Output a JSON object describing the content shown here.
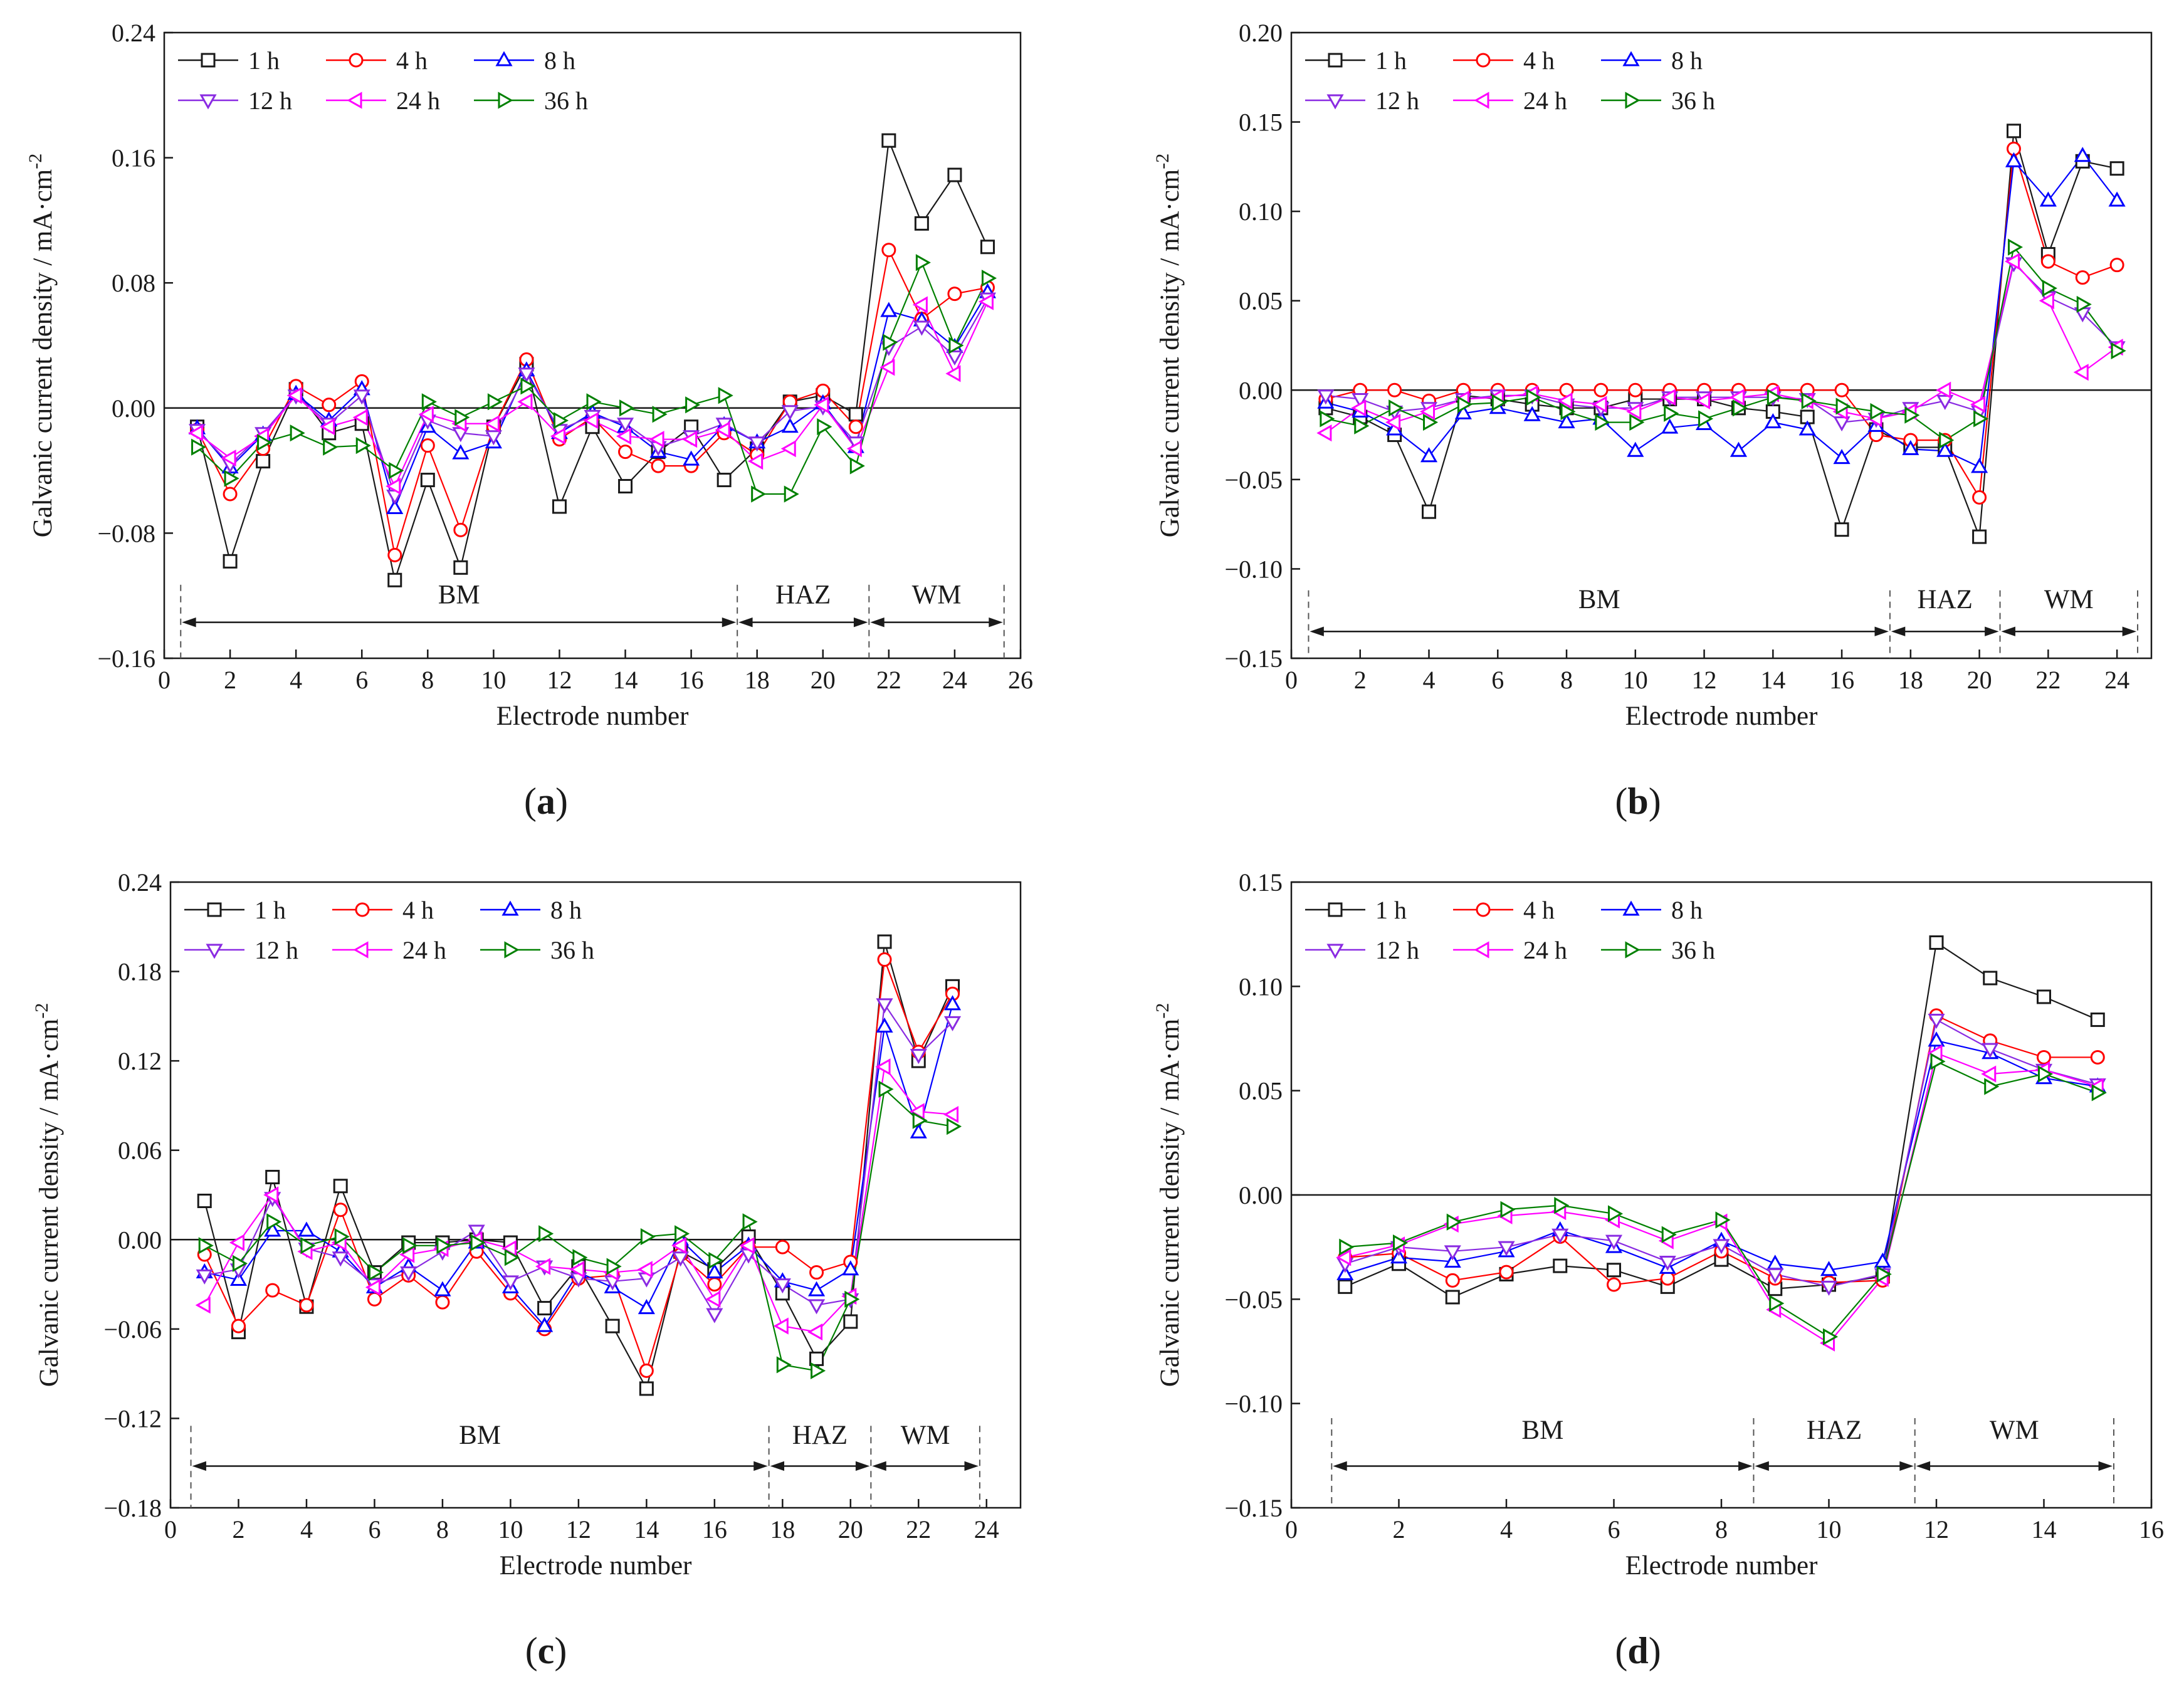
{
  "figure": {
    "captions": [
      "(a)",
      "(b)",
      "(c)",
      "(d)"
    ]
  },
  "styles": {
    "1 h": {
      "color": "#1a1a1a",
      "marker": "square"
    },
    "4 h": {
      "color": "#ff0000",
      "marker": "circle"
    },
    "8 h": {
      "color": "#0000ff",
      "marker": "triangle-up"
    },
    "12 h": {
      "color": "#8a2be2",
      "marker": "triangle-down"
    },
    "24 h": {
      "color": "#ff00ff",
      "marker": "triangle-left"
    },
    "36 h": {
      "color": "#008000",
      "marker": "triangle-right"
    }
  },
  "chart_data": [
    {
      "type": "line",
      "caption": "(a)",
      "xlabel": "Electrode number",
      "ylabel": "Galvanic current density / mA·cm",
      "ylabel_sup": "-2",
      "xlim": [
        0,
        26
      ],
      "ylim": [
        -0.16,
        0.24
      ],
      "xticks": [
        0,
        2,
        4,
        6,
        8,
        10,
        12,
        14,
        16,
        18,
        20,
        22,
        24,
        26
      ],
      "xtick_labels": [
        "0",
        "2",
        "4",
        "6",
        "8",
        "10",
        "12",
        "14",
        "16",
        "18",
        "20",
        "22",
        "24",
        "26"
      ],
      "yticks": [
        -0.16,
        -0.08,
        0.0,
        0.08,
        0.16,
        0.24
      ],
      "ytick_labels": [
        "−0.16",
        "−0.08",
        "0.00",
        "0.08",
        "0.16",
        "0.24"
      ],
      "legend": [
        "1 h",
        "4 h",
        "8 h",
        "12 h",
        "24 h",
        "36 h"
      ],
      "regions": [
        {
          "label": "BM",
          "from": 0.5,
          "to": 17.4
        },
        {
          "label": "HAZ",
          "from": 17.4,
          "to": 21.4
        },
        {
          "label": "WM",
          "from": 21.4,
          "to": 25.5
        }
      ],
      "region_y": -0.137,
      "region_label_y": -0.125,
      "region_top": -0.113,
      "x": [
        1,
        2,
        3,
        4,
        5,
        6,
        7,
        8,
        9,
        10,
        11,
        12,
        13,
        14,
        15,
        16,
        17,
        18,
        19,
        20,
        21,
        22,
        23,
        24,
        25
      ],
      "series": [
        {
          "name": "1 h",
          "values": [
            -0.012,
            -0.098,
            -0.034,
            0.012,
            -0.016,
            -0.01,
            -0.11,
            -0.046,
            -0.102,
            -0.012,
            0.028,
            -0.063,
            -0.012,
            -0.05,
            -0.028,
            -0.012,
            -0.046,
            -0.026,
            0.004,
            0.008,
            -0.004,
            0.171,
            0.118,
            0.149,
            0.103
          ]
        },
        {
          "name": "4 h",
          "values": [
            -0.014,
            -0.055,
            -0.026,
            0.014,
            0.002,
            0.017,
            -0.094,
            -0.024,
            -0.078,
            -0.012,
            0.031,
            -0.02,
            -0.006,
            -0.028,
            -0.037,
            -0.037,
            -0.016,
            -0.03,
            0.004,
            0.011,
            -0.012,
            0.101,
            0.057,
            0.073,
            0.077
          ]
        },
        {
          "name": "8 h",
          "values": [
            -0.013,
            -0.038,
            -0.017,
            0.009,
            -0.008,
            0.012,
            -0.064,
            -0.012,
            -0.029,
            -0.022,
            0.024,
            -0.016,
            -0.003,
            -0.012,
            -0.028,
            -0.033,
            -0.011,
            -0.022,
            -0.012,
            0.003,
            -0.025,
            0.062,
            0.056,
            0.039,
            0.074
          ]
        },
        {
          "name": "12 h",
          "values": [
            -0.014,
            -0.036,
            -0.016,
            0.008,
            -0.01,
            0.008,
            -0.056,
            -0.008,
            -0.016,
            -0.018,
            0.022,
            -0.014,
            -0.005,
            -0.01,
            -0.025,
            -0.018,
            -0.01,
            -0.022,
            -0.002,
            0.001,
            -0.022,
            0.039,
            0.052,
            0.033,
            0.07
          ]
        },
        {
          "name": "24 h",
          "values": [
            -0.016,
            -0.032,
            -0.018,
            0.008,
            -0.012,
            -0.006,
            -0.05,
            -0.004,
            -0.01,
            -0.01,
            0.004,
            -0.018,
            -0.008,
            -0.018,
            -0.02,
            -0.02,
            -0.014,
            -0.034,
            -0.026,
            0.002,
            -0.026,
            0.026,
            0.066,
            0.022,
            0.068
          ]
        },
        {
          "name": "36 h",
          "values": [
            -0.025,
            -0.045,
            -0.022,
            -0.016,
            -0.025,
            -0.024,
            -0.04,
            0.004,
            -0.006,
            0.004,
            0.014,
            -0.008,
            0.004,
            0.0,
            -0.004,
            0.002,
            0.008,
            -0.055,
            -0.055,
            -0.012,
            -0.037,
            0.042,
            0.093,
            0.04,
            0.083
          ]
        }
      ]
    },
    {
      "type": "line",
      "caption": "(b)",
      "xlabel": "Electrode number",
      "ylabel": "Galvanic current density / mA·cm",
      "ylabel_sup": "-2",
      "xlim": [
        0,
        25
      ],
      "ylim": [
        -0.15,
        0.2
      ],
      "xticks": [
        0,
        2,
        4,
        6,
        8,
        10,
        12,
        14,
        16,
        18,
        20,
        22,
        24
      ],
      "xtick_labels": [
        "0",
        "2",
        "4",
        "6",
        "8",
        "10",
        "12",
        "14",
        "16",
        "18",
        "20",
        "22",
        "24"
      ],
      "yticks": [
        -0.15,
        -0.1,
        -0.05,
        0.0,
        0.05,
        0.1,
        0.15,
        0.2
      ],
      "ytick_labels": [
        "−0.15",
        "−0.10",
        "−0.05",
        "0.00",
        "0.05",
        "0.10",
        "0.15",
        "0.20"
      ],
      "legend": [
        "1 h",
        "4 h",
        "8 h",
        "12 h",
        "24 h",
        "36 h"
      ],
      "regions": [
        {
          "label": "BM",
          "from": 0.5,
          "to": 17.4
        },
        {
          "label": "HAZ",
          "from": 17.4,
          "to": 20.6
        },
        {
          "label": "WM",
          "from": 20.6,
          "to": 24.6
        }
      ],
      "region_y": -0.135,
      "region_label_y": -0.122,
      "region_top": -0.112,
      "x": [
        1,
        2,
        3,
        4,
        5,
        6,
        7,
        8,
        9,
        10,
        11,
        12,
        13,
        14,
        15,
        16,
        17,
        18,
        19,
        20,
        21,
        22,
        23,
        24
      ],
      "series": [
        {
          "name": "1 h",
          "values": [
            -0.01,
            -0.015,
            -0.025,
            -0.068,
            -0.003,
            -0.005,
            -0.008,
            -0.01,
            -0.01,
            -0.005,
            -0.005,
            -0.005,
            -0.01,
            -0.012,
            -0.015,
            -0.078,
            -0.022,
            -0.032,
            -0.032,
            -0.082,
            0.145,
            0.076,
            0.128,
            0.124
          ]
        },
        {
          "name": "4 h",
          "values": [
            -0.005,
            0.0,
            0.0,
            -0.006,
            0.0,
            0.0,
            0.0,
            0.0,
            0.0,
            0.0,
            0.0,
            0.0,
            0.0,
            0.0,
            0.0,
            0.0,
            -0.025,
            -0.028,
            -0.028,
            -0.06,
            0.135,
            0.072,
            0.063,
            0.07
          ]
        },
        {
          "name": "8 h",
          "values": [
            -0.007,
            -0.012,
            -0.022,
            -0.037,
            -0.013,
            -0.01,
            -0.014,
            -0.018,
            -0.016,
            -0.034,
            -0.021,
            -0.019,
            -0.034,
            -0.018,
            -0.022,
            -0.038,
            -0.02,
            -0.033,
            -0.034,
            -0.043,
            0.128,
            0.106,
            0.131,
            0.106
          ]
        },
        {
          "name": "12 h",
          "values": [
            -0.003,
            -0.005,
            -0.012,
            -0.01,
            -0.005,
            -0.003,
            -0.003,
            -0.008,
            -0.01,
            -0.01,
            -0.004,
            -0.004,
            -0.004,
            -0.004,
            -0.005,
            -0.018,
            -0.016,
            -0.01,
            -0.006,
            -0.012,
            0.071,
            0.052,
            0.043,
            0.024
          ]
        },
        {
          "name": "24 h",
          "values": [
            -0.024,
            -0.01,
            -0.018,
            -0.012,
            -0.005,
            -0.004,
            -0.002,
            -0.006,
            -0.008,
            -0.012,
            -0.004,
            -0.006,
            -0.004,
            -0.002,
            -0.006,
            -0.012,
            -0.016,
            -0.012,
            0.0,
            -0.008,
            0.072,
            0.05,
            0.01,
            0.024
          ]
        },
        {
          "name": "36 h",
          "values": [
            -0.016,
            -0.02,
            -0.01,
            -0.018,
            -0.008,
            -0.007,
            -0.004,
            -0.012,
            -0.018,
            -0.018,
            -0.013,
            -0.016,
            -0.01,
            -0.004,
            -0.006,
            -0.009,
            -0.012,
            -0.014,
            -0.028,
            -0.016,
            0.08,
            0.057,
            0.048,
            0.022
          ]
        }
      ]
    },
    {
      "type": "line",
      "caption": "(c)",
      "xlabel": "Electrode number",
      "ylabel": "Galvanic current density / mA·cm",
      "ylabel_sup": "-2",
      "xlim": [
        0,
        25
      ],
      "ylim": [
        -0.18,
        0.24
      ],
      "xticks": [
        0,
        2,
        4,
        6,
        8,
        10,
        12,
        14,
        16,
        18,
        20,
        22,
        24
      ],
      "xtick_labels": [
        "0",
        "2",
        "4",
        "6",
        "8",
        "10",
        "12",
        "14",
        "16",
        "18",
        "20",
        "22",
        "24"
      ],
      "yticks": [
        -0.18,
        -0.12,
        -0.06,
        0.0,
        0.06,
        0.12,
        0.18,
        0.24
      ],
      "ytick_labels": [
        "−0.18",
        "−0.12",
        "−0.06",
        "0.00",
        "0.06",
        "0.12",
        "0.18",
        "0.24"
      ],
      "legend": [
        "1 h",
        "4 h",
        "8 h",
        "12 h",
        "24 h",
        "36 h"
      ],
      "regions": [
        {
          "label": "BM",
          "from": 0.6,
          "to": 17.6
        },
        {
          "label": "HAZ",
          "from": 17.6,
          "to": 20.6
        },
        {
          "label": "WM",
          "from": 20.6,
          "to": 23.8
        }
      ],
      "region_y": -0.152,
      "region_label_y": -0.137,
      "region_top": -0.125,
      "x": [
        1,
        2,
        3,
        4,
        5,
        6,
        7,
        8,
        9,
        10,
        11,
        12,
        13,
        14,
        15,
        16,
        17,
        18,
        19,
        20,
        21,
        22,
        23
      ],
      "series": [
        {
          "name": "1 h",
          "values": [
            0.026,
            -0.062,
            0.042,
            -0.045,
            0.036,
            -0.022,
            -0.002,
            -0.002,
            0.0,
            -0.002,
            -0.046,
            -0.018,
            -0.058,
            -0.1,
            -0.008,
            -0.02,
            0.002,
            -0.036,
            -0.08,
            -0.055,
            0.2,
            0.12,
            0.17
          ]
        },
        {
          "name": "4 h",
          "values": [
            -0.01,
            -0.058,
            -0.034,
            -0.044,
            0.02,
            -0.04,
            -0.024,
            -0.042,
            -0.008,
            -0.036,
            -0.06,
            -0.026,
            -0.024,
            -0.088,
            -0.01,
            -0.03,
            -0.005,
            -0.005,
            -0.022,
            -0.015,
            0.188,
            0.126,
            0.165
          ]
        },
        {
          "name": "8 h",
          "values": [
            -0.022,
            -0.027,
            0.006,
            0.006,
            -0.008,
            -0.032,
            -0.018,
            -0.034,
            -0.002,
            -0.032,
            -0.058,
            -0.022,
            -0.032,
            -0.046,
            0.0,
            -0.022,
            -0.004,
            -0.028,
            -0.034,
            -0.02,
            0.143,
            0.072,
            0.158
          ]
        },
        {
          "name": "12 h",
          "values": [
            -0.024,
            -0.02,
            0.028,
            -0.006,
            -0.012,
            -0.03,
            -0.022,
            -0.008,
            0.006,
            -0.028,
            -0.018,
            -0.026,
            -0.028,
            -0.026,
            -0.012,
            -0.05,
            -0.01,
            -0.03,
            -0.044,
            -0.04,
            0.158,
            0.124,
            0.146
          ]
        },
        {
          "name": "24 h",
          "values": [
            -0.044,
            -0.002,
            0.03,
            -0.008,
            -0.002,
            -0.032,
            -0.01,
            -0.006,
            0.0,
            -0.006,
            -0.018,
            -0.02,
            -0.022,
            -0.02,
            -0.004,
            -0.04,
            -0.004,
            -0.058,
            -0.062,
            -0.038,
            0.116,
            0.086,
            0.084
          ]
        },
        {
          "name": "36 h",
          "values": [
            -0.004,
            -0.016,
            0.012,
            -0.004,
            0.002,
            -0.022,
            -0.004,
            -0.004,
            -0.002,
            -0.012,
            0.004,
            -0.012,
            -0.018,
            0.002,
            0.004,
            -0.014,
            0.012,
            -0.084,
            -0.088,
            -0.04,
            0.101,
            0.08,
            0.076
          ]
        }
      ]
    },
    {
      "type": "line",
      "caption": "(d)",
      "xlabel": "Electrode number",
      "ylabel": "Galvanic current density / mA·cm",
      "ylabel_sup": "-2",
      "xlim": [
        0,
        16
      ],
      "ylim": [
        -0.15,
        0.15
      ],
      "xticks": [
        0,
        2,
        4,
        6,
        8,
        10,
        12,
        14,
        16
      ],
      "xtick_labels": [
        "0",
        "2",
        "4",
        "6",
        "8",
        "10",
        "12",
        "14",
        "16"
      ],
      "yticks": [
        -0.15,
        -0.1,
        -0.05,
        0.0,
        0.05,
        0.1,
        0.15
      ],
      "ytick_labels": [
        "−0.15",
        "−0.10",
        "−0.05",
        "0.00",
        "0.05",
        "0.10",
        "0.15"
      ],
      "legend": [
        "1 h",
        "4 h",
        "8 h",
        "12 h",
        "24 h",
        "36 h"
      ],
      "regions": [
        {
          "label": "BM",
          "from": 0.75,
          "to": 8.6
        },
        {
          "label": "HAZ",
          "from": 8.6,
          "to": 11.6
        },
        {
          "label": "WM",
          "from": 11.6,
          "to": 15.3
        }
      ],
      "region_y": -0.13,
      "region_label_y": -0.117,
      "region_top": -0.107,
      "x": [
        1,
        2,
        3,
        4,
        5,
        6,
        7,
        8,
        9,
        10,
        11,
        12,
        13,
        14,
        15
      ],
      "series": [
        {
          "name": "1 h",
          "values": [
            -0.044,
            -0.033,
            -0.049,
            -0.038,
            -0.034,
            -0.036,
            -0.044,
            -0.031,
            -0.045,
            -0.043,
            -0.039,
            0.121,
            0.104,
            0.095,
            0.084
          ]
        },
        {
          "name": "4 h",
          "values": [
            -0.03,
            -0.028,
            -0.041,
            -0.037,
            -0.02,
            -0.043,
            -0.04,
            -0.027,
            -0.04,
            -0.042,
            -0.041,
            0.086,
            0.074,
            0.066,
            0.066
          ]
        },
        {
          "name": "8 h",
          "values": [
            -0.038,
            -0.03,
            -0.032,
            -0.027,
            -0.017,
            -0.025,
            -0.035,
            -0.022,
            -0.033,
            -0.036,
            -0.032,
            0.074,
            0.068,
            0.056,
            0.052
          ]
        },
        {
          "name": "12 h",
          "values": [
            -0.033,
            -0.025,
            -0.027,
            -0.025,
            -0.019,
            -0.022,
            -0.032,
            -0.024,
            -0.038,
            -0.044,
            -0.038,
            0.084,
            0.07,
            0.06,
            0.053
          ]
        },
        {
          "name": "24 h",
          "values": [
            -0.03,
            -0.024,
            -0.014,
            -0.01,
            -0.008,
            -0.012,
            -0.022,
            -0.013,
            -0.055,
            -0.071,
            -0.04,
            0.068,
            0.058,
            0.06,
            0.052
          ]
        },
        {
          "name": "36 h",
          "values": [
            -0.025,
            -0.023,
            -0.013,
            -0.007,
            -0.005,
            -0.009,
            -0.019,
            -0.012,
            -0.052,
            -0.068,
            -0.038,
            0.064,
            0.052,
            0.058,
            0.049
          ]
        }
      ]
    }
  ]
}
